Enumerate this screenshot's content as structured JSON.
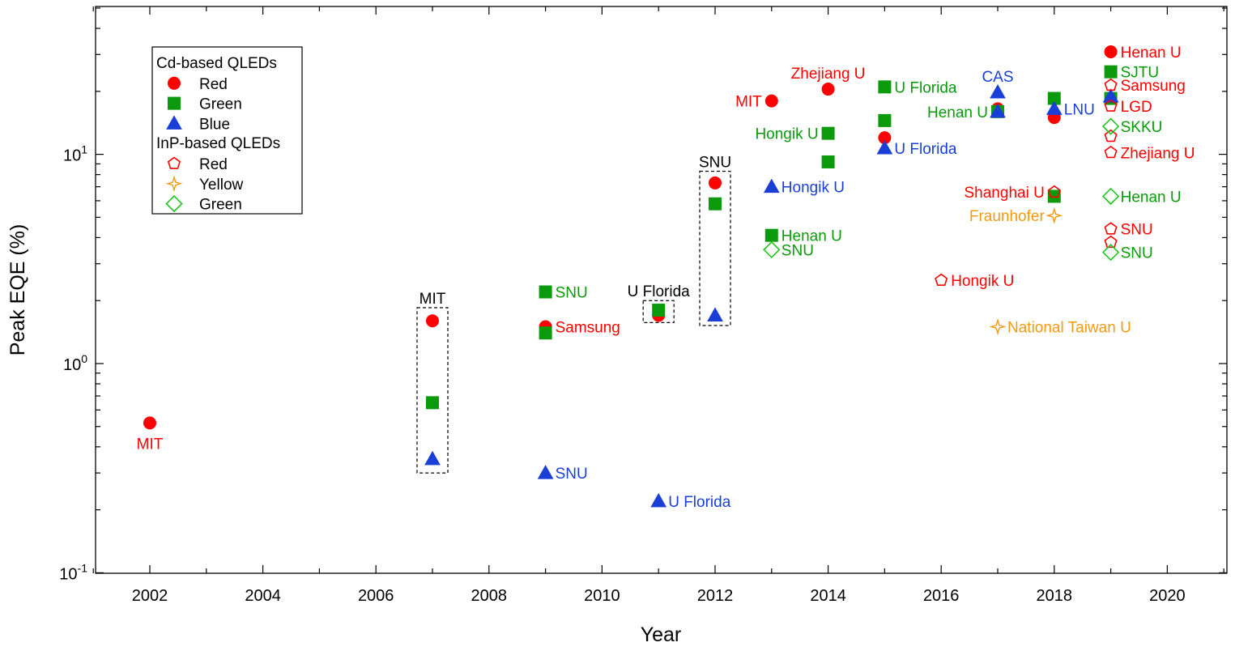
{
  "chart_data": {
    "type": "scatter",
    "xlabel": "Year",
    "ylabel": "Peak EQE (%)",
    "y_scale": "log",
    "xlim": [
      2001,
      2021
    ],
    "ylim": [
      0.1,
      50
    ],
    "x_ticks": [
      2002,
      2004,
      2006,
      2008,
      2010,
      2012,
      2014,
      2016,
      2018,
      2020
    ],
    "y_ticks": [
      {
        "value": 0.1,
        "base": "10",
        "exp": "-1"
      },
      {
        "value": 1,
        "base": "10",
        "exp": "0"
      },
      {
        "value": 10,
        "base": "10",
        "exp": "1"
      }
    ],
    "grid": false,
    "legend_placement": "top-left",
    "legend": {
      "groups": [
        {
          "title": "Cd-based QLEDs",
          "entries": [
            {
              "label": "Red",
              "series": "cd_red"
            },
            {
              "label": "Green",
              "series": "cd_green"
            },
            {
              "label": "Blue",
              "series": "cd_blue"
            }
          ]
        },
        {
          "title": "InP-based QLEDs",
          "entries": [
            {
              "label": "Red",
              "series": "inp_red"
            },
            {
              "label": "Yellow",
              "series": "inp_yellow"
            },
            {
              "label": "Green",
              "series": "inp_green"
            }
          ]
        }
      ]
    },
    "series": {
      "cd_red": {
        "marker": "circle",
        "color": "#ff0000",
        "filled": true,
        "points": [
          {
            "x": 2002,
            "y": 0.52
          },
          {
            "x": 2007,
            "y": 1.6
          },
          {
            "x": 2009,
            "y": 1.5
          },
          {
            "x": 2011,
            "y": 1.7
          },
          {
            "x": 2012,
            "y": 7.3
          },
          {
            "x": 2013,
            "y": 18
          },
          {
            "x": 2014,
            "y": 20.5
          },
          {
            "x": 2015,
            "y": 12
          },
          {
            "x": 2017,
            "y": 16.5
          },
          {
            "x": 2018,
            "y": 15
          },
          {
            "x": 2019,
            "y": 30.9
          }
        ]
      },
      "cd_green": {
        "marker": "square",
        "color": "#0b9a0b",
        "filled": true,
        "points": [
          {
            "x": 2007,
            "y": 0.65
          },
          {
            "x": 2009,
            "y": 2.2
          },
          {
            "x": 2009,
            "y": 1.4
          },
          {
            "x": 2011,
            "y": 1.8
          },
          {
            "x": 2012,
            "y": 5.8
          },
          {
            "x": 2013,
            "y": 4.1
          },
          {
            "x": 2014,
            "y": 12.6
          },
          {
            "x": 2014,
            "y": 9.2
          },
          {
            "x": 2015,
            "y": 21
          },
          {
            "x": 2015,
            "y": 14.5
          },
          {
            "x": 2017,
            "y": 16
          },
          {
            "x": 2018,
            "y": 18.5
          },
          {
            "x": 2018,
            "y": 6.3
          },
          {
            "x": 2019,
            "y": 24.8
          },
          {
            "x": 2019,
            "y": 18.5
          }
        ]
      },
      "cd_blue": {
        "marker": "triangle",
        "color": "#1a3fd6",
        "filled": true,
        "points": [
          {
            "x": 2007,
            "y": 0.35
          },
          {
            "x": 2009,
            "y": 0.3
          },
          {
            "x": 2011,
            "y": 0.22
          },
          {
            "x": 2012,
            "y": 1.7
          },
          {
            "x": 2013,
            "y": 7
          },
          {
            "x": 2015,
            "y": 10.7
          },
          {
            "x": 2017,
            "y": 19.8
          },
          {
            "x": 2017,
            "y": 16
          },
          {
            "x": 2018,
            "y": 16.5
          },
          {
            "x": 2019,
            "y": 18.9
          }
        ]
      },
      "inp_red": {
        "marker": "pentagon",
        "color": "#ff0000",
        "filled": false,
        "points": [
          {
            "x": 2016,
            "y": 2.5
          },
          {
            "x": 2018,
            "y": 6.6
          },
          {
            "x": 2019,
            "y": 21.4
          },
          {
            "x": 2019,
            "y": 17
          },
          {
            "x": 2019,
            "y": 12.2
          },
          {
            "x": 2019,
            "y": 10.2
          },
          {
            "x": 2019,
            "y": 4.4
          },
          {
            "x": 2019,
            "y": 3.8
          }
        ]
      },
      "inp_yellow": {
        "marker": "star4",
        "color": "#f39a10",
        "filled": false,
        "points": [
          {
            "x": 2017,
            "y": 1.5
          },
          {
            "x": 2018,
            "y": 5.1
          }
        ]
      },
      "inp_green": {
        "marker": "diamond",
        "color": "#1fc41f",
        "filled": false,
        "points": [
          {
            "x": 2013,
            "y": 3.5
          },
          {
            "x": 2019,
            "y": 13.6
          },
          {
            "x": 2019,
            "y": 6.3
          },
          {
            "x": 2019,
            "y": 3.4
          }
        ]
      }
    },
    "annotations": [
      {
        "text": "MIT",
        "x": 2002,
        "y": 0.52,
        "color": "#ff0000",
        "pos": "below"
      },
      {
        "text": "Samsung",
        "x": 2009,
        "y": 1.5,
        "color": "#ff0000",
        "pos": "right"
      },
      {
        "text": "SNU",
        "x": 2009,
        "y": 2.2,
        "color": "#0b9a0b",
        "pos": "right"
      },
      {
        "text": "SNU",
        "x": 2009,
        "y": 0.3,
        "color": "#1a3fd6",
        "pos": "right"
      },
      {
        "text": "U Florida",
        "x": 2011,
        "y": 0.22,
        "color": "#1a3fd6",
        "pos": "right"
      },
      {
        "text": "MIT",
        "x": 2013,
        "y": 18,
        "color": "#ff0000",
        "pos": "left"
      },
      {
        "text": "Hongik U",
        "x": 2013,
        "y": 7,
        "color": "#1a3fd6",
        "pos": "right"
      },
      {
        "text": "Henan U",
        "x": 2013,
        "y": 4.1,
        "color": "#0b9a0b",
        "pos": "right"
      },
      {
        "text": "SNU",
        "x": 2013,
        "y": 3.5,
        "color": "#0b9a0b",
        "pos": "right"
      },
      {
        "text": "Zhejiang U",
        "x": 2014,
        "y": 20.5,
        "color": "#ff0000",
        "pos": "above"
      },
      {
        "text": "Hongik U",
        "x": 2014,
        "y": 12.6,
        "color": "#0b9a0b",
        "pos": "left"
      },
      {
        "text": "U Florida",
        "x": 2015,
        "y": 21,
        "color": "#0b9a0b",
        "pos": "right"
      },
      {
        "text": "U Florida",
        "x": 2015,
        "y": 10.7,
        "color": "#1a3fd6",
        "pos": "right"
      },
      {
        "text": "Hongik U",
        "x": 2016,
        "y": 2.5,
        "color": "#ff0000",
        "pos": "right"
      },
      {
        "text": "CAS",
        "x": 2017,
        "y": 19.8,
        "color": "#1a3fd6",
        "pos": "above"
      },
      {
        "text": "Henan U",
        "x": 2017,
        "y": 16,
        "color": "#0b9a0b",
        "pos": "left"
      },
      {
        "text": "National Taiwan U",
        "x": 2017,
        "y": 1.5,
        "color": "#f39a10",
        "pos": "right"
      },
      {
        "text": "LNU",
        "x": 2018,
        "y": 16.5,
        "color": "#1a3fd6",
        "pos": "right"
      },
      {
        "text": "Shanghai U",
        "x": 2018,
        "y": 6.6,
        "color": "#ff0000",
        "pos": "left"
      },
      {
        "text": "Fraunhofer",
        "x": 2018,
        "y": 5.1,
        "color": "#f39a10",
        "pos": "left"
      },
      {
        "text": "Henan U",
        "x": 2019,
        "y": 30.9,
        "color": "#ff0000",
        "pos": "right"
      },
      {
        "text": "SJTU",
        "x": 2019,
        "y": 24.8,
        "color": "#0b9a0b",
        "pos": "right"
      },
      {
        "text": "Samsung",
        "x": 2019,
        "y": 21.4,
        "color": "#ff0000",
        "pos": "right"
      },
      {
        "text": "LGD",
        "x": 2019,
        "y": 17,
        "color": "#ff0000",
        "pos": "right"
      },
      {
        "text": "SKKU",
        "x": 2019,
        "y": 13.6,
        "color": "#0b9a0b",
        "pos": "right"
      },
      {
        "text": "Zhejiang U",
        "x": 2019,
        "y": 10.2,
        "color": "#ff0000",
        "pos": "right"
      },
      {
        "text": "Henan U",
        "x": 2019,
        "y": 6.3,
        "color": "#0b9a0b",
        "pos": "right"
      },
      {
        "text": "SNU",
        "x": 2019,
        "y": 4.4,
        "color": "#ff0000",
        "pos": "right"
      },
      {
        "text": "SNU",
        "x": 2019,
        "y": 3.4,
        "color": "#0b9a0b",
        "pos": "right"
      }
    ],
    "boxes": [
      {
        "label": "MIT",
        "x": 2007,
        "y_min": 0.3,
        "y_max": 1.85
      },
      {
        "label": "U Florida",
        "x": 2011,
        "y_min": 1.57,
        "y_max": 2.0
      },
      {
        "label": "SNU",
        "x": 2012,
        "y_min": 1.52,
        "y_max": 8.3
      }
    ],
    "colors": {
      "red": "#ff0000",
      "green": "#0b9a0b",
      "blue": "#1a3fd6",
      "yellow": "#f39a10",
      "light_green": "#1fc41f"
    }
  }
}
